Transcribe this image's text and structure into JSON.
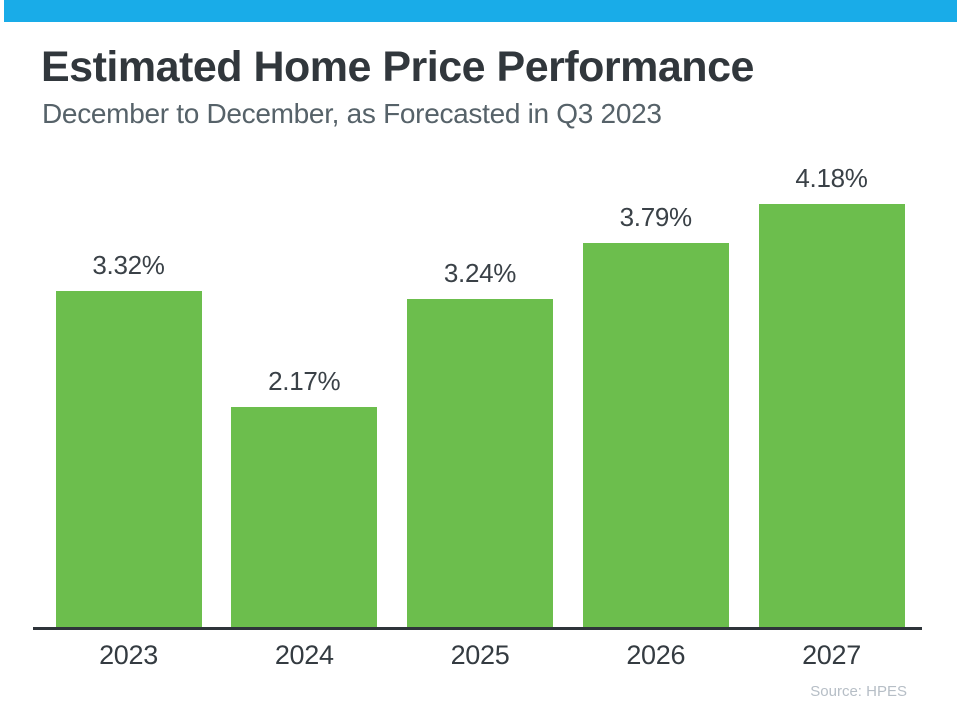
{
  "page": {
    "background": "#ffffff",
    "accent_bar_color": "#19ACE8"
  },
  "header": {
    "title": "Estimated Home Price Performance",
    "subtitle": "December to December, as Forecasted in Q3 2023"
  },
  "chart_data": {
    "type": "bar",
    "categories": [
      "2023",
      "2024",
      "2025",
      "2026",
      "2027"
    ],
    "values": [
      3.32,
      2.17,
      3.24,
      3.79,
      4.18
    ],
    "value_labels": [
      "3.32%",
      "2.17%",
      "3.24%",
      "3.79%",
      "4.18%"
    ],
    "bar_color": "#6CBE4D",
    "axis_line_color": "#2e343a",
    "title": "Estimated Home Price Performance",
    "xlabel": "",
    "ylabel": "",
    "ylim": [
      0,
      4.6
    ],
    "grid": false,
    "legend": "none",
    "data_labels_position": "above-bars",
    "x_axis_labels_position": "below-axis"
  },
  "footer": {
    "source": "Source: HPES"
  }
}
